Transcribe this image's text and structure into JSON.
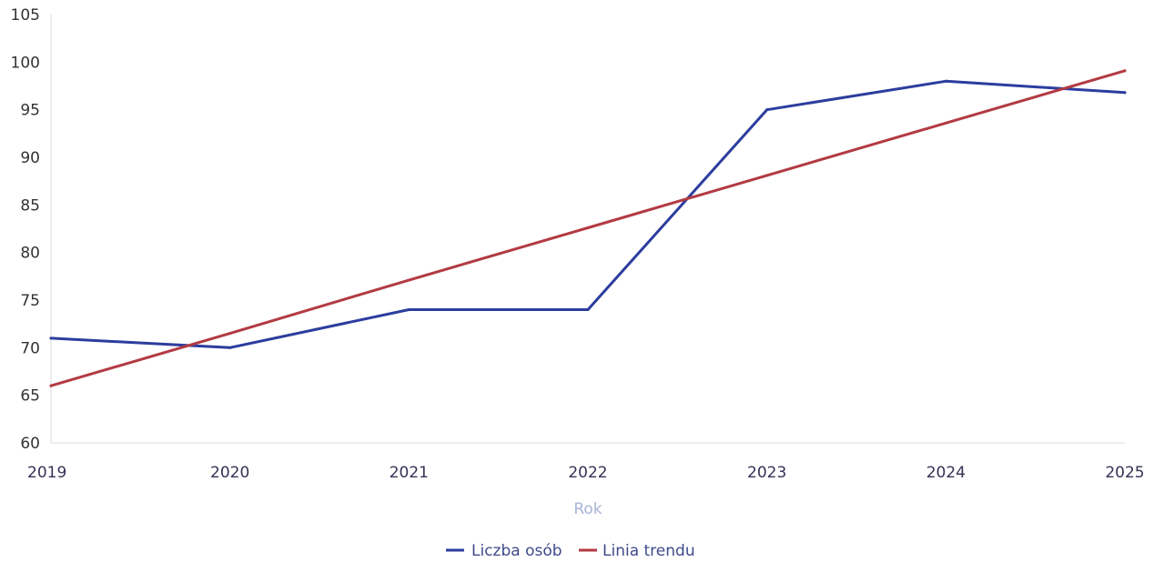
{
  "chart_data": {
    "type": "line",
    "title": "",
    "xlabel": "Rok",
    "ylabel": "",
    "categories": [
      "2019",
      "2020",
      "2021",
      "2022",
      "2023",
      "2024",
      "2025"
    ],
    "ylim": [
      60,
      105
    ],
    "yticks": [
      60,
      65,
      70,
      75,
      80,
      85,
      90,
      95,
      100,
      105
    ],
    "grid": false,
    "legend_position": "bottom-center",
    "series": [
      {
        "name": "Liczba osób",
        "color": "#2c3d9e",
        "values": [
          71,
          70,
          74,
          74,
          95,
          98,
          96.8
        ]
      },
      {
        "name": "Linia trendu",
        "color": "#b33a42",
        "values": [
          66,
          71.5,
          77.1,
          82.6,
          88.1,
          93.6,
          99.1
        ]
      }
    ]
  }
}
